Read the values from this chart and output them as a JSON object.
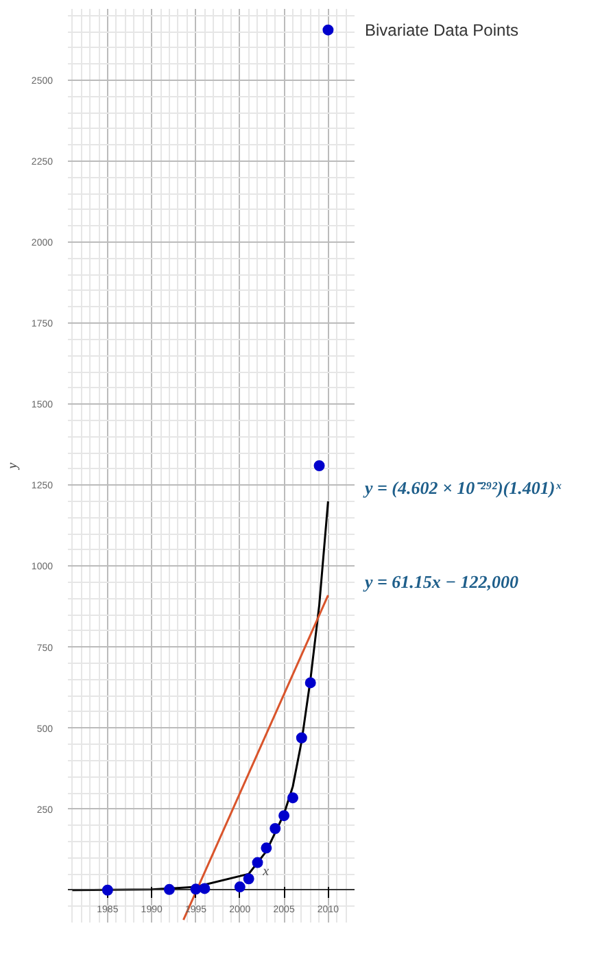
{
  "chart_data": {
    "type": "scatter",
    "xlabel": "x",
    "ylabel": "y",
    "xlim": [
      1980.5,
      2013
    ],
    "ylim": [
      -100,
      2720
    ],
    "xticks": [
      1985,
      1990,
      1995,
      2000,
      2005,
      2010
    ],
    "yticks": [
      250,
      500,
      750,
      1000,
      1250,
      1500,
      1750,
      2000,
      2250,
      2500
    ],
    "grid": true,
    "marker": "circle",
    "series": [
      {
        "name": "Bivariate Data Points",
        "color": "#0000cc",
        "x": [
          1985,
          1992,
          1995,
          1996,
          2000,
          2001,
          2002,
          2003,
          2004,
          2005,
          2006,
          2007,
          2008,
          2009,
          2010
        ],
        "values": [
          0,
          2,
          3,
          5,
          10,
          35,
          85,
          130,
          190,
          230,
          285,
          470,
          640,
          1310,
          2655
        ]
      },
      {
        "name": "y = (4.602 × 10⁻²⁹²)(1.401)ˣ",
        "type": "line",
        "marker": "none",
        "color": "#000000",
        "x": [
          1981,
          1990,
          1995,
          2001,
          2003,
          2005,
          2006,
          2007,
          2008,
          2009,
          2010
        ],
        "values": [
          0,
          2,
          10,
          50,
          120,
          235,
          320,
          460,
          650,
          880,
          1200
        ]
      },
      {
        "name": "y = 61.15x − 122,000",
        "type": "line",
        "marker": "none",
        "color": "#d9542b",
        "x": [
          1993.6,
          2010
        ],
        "values": [
          -92,
          910
        ]
      }
    ]
  }
}
